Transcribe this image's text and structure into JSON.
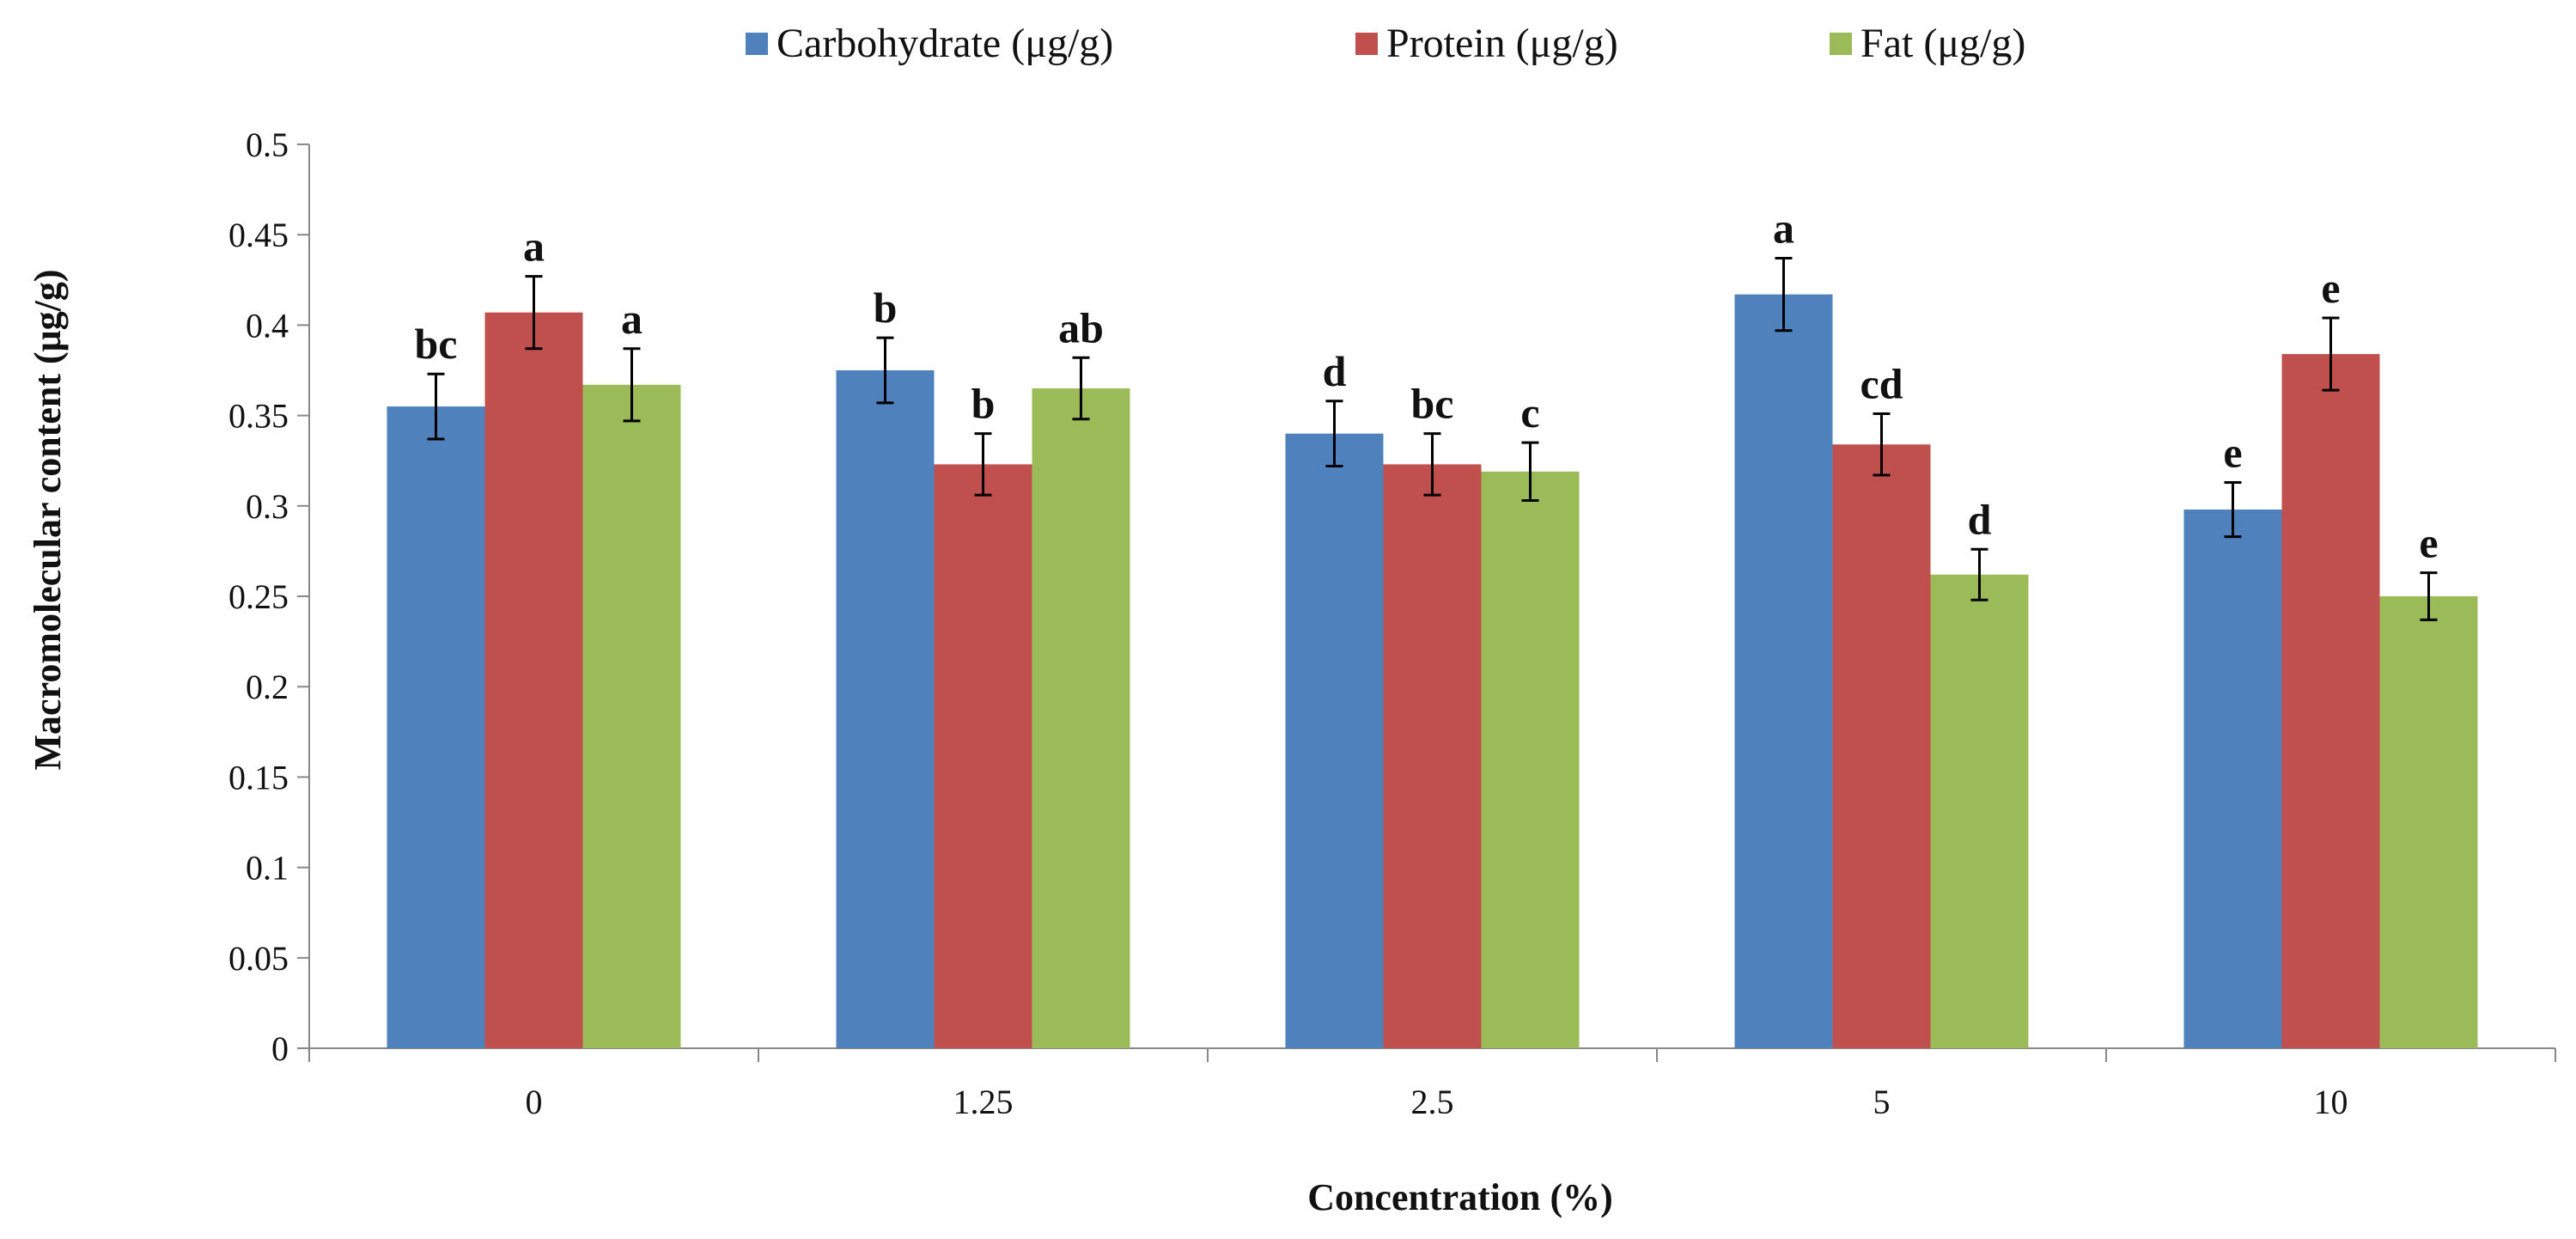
{
  "chart_data": {
    "type": "bar",
    "title": "",
    "xlabel": "Concentration  (%)",
    "ylabel": "Macromolecular  content  (μg/g)",
    "categories": [
      "0",
      "1.25",
      "2.5",
      "5",
      "10"
    ],
    "ylim": [
      0,
      0.5
    ],
    "yticks": [
      0,
      0.05,
      0.1,
      0.15,
      0.2,
      0.25,
      0.3,
      0.35,
      0.4,
      0.45,
      0.5
    ],
    "ytick_labels": [
      "0",
      "0.05",
      "0.1",
      "0.15",
      "0.2",
      "0.25",
      "0.3",
      "0.35",
      "0.4",
      "0.45",
      "0.5"
    ],
    "legend_position": "top",
    "grid": false,
    "series": [
      {
        "name": "Carbohydrate (μg/g)",
        "color": "#4F81BD",
        "values": [
          0.355,
          0.375,
          0.34,
          0.417,
          0.298
        ],
        "errors": [
          0.018,
          0.018,
          0.018,
          0.02,
          0.015
        ],
        "labels": [
          "bc",
          "b",
          "d",
          "a",
          "e"
        ]
      },
      {
        "name": "Protein (μg/g)",
        "color": "#C0504D",
        "values": [
          0.407,
          0.323,
          0.323,
          0.334,
          0.384
        ],
        "errors": [
          0.02,
          0.017,
          0.017,
          0.017,
          0.02
        ],
        "labels": [
          "a",
          "b",
          "bc",
          "cd",
          "e"
        ]
      },
      {
        "name": "Fat (μg/g)",
        "color": "#9BBB59",
        "values": [
          0.367,
          0.365,
          0.319,
          0.262,
          0.25
        ],
        "errors": [
          0.02,
          0.017,
          0.016,
          0.014,
          0.013
        ],
        "labels": [
          "a",
          "ab",
          "c",
          "d",
          "e"
        ]
      }
    ]
  }
}
